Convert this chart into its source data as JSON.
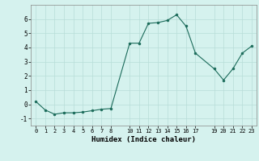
{
  "x": [
    0,
    1,
    2,
    3,
    4,
    5,
    6,
    7,
    8,
    10,
    11,
    12,
    13,
    14,
    15,
    16,
    17,
    19,
    20,
    21,
    22,
    23
  ],
  "y": [
    0.2,
    -0.4,
    -0.7,
    -0.6,
    -0.6,
    -0.55,
    -0.45,
    -0.35,
    -0.3,
    4.3,
    4.3,
    5.7,
    5.75,
    5.9,
    6.3,
    5.5,
    3.6,
    2.5,
    1.7,
    2.5,
    3.6,
    4.1
  ],
  "line_color": "#1b6b5a",
  "marker_color": "#1b6b5a",
  "bg_color": "#d5f2ee",
  "grid_color": "#b8ddd8",
  "xlabel": "Humidex (Indice chaleur)",
  "ylim": [
    -1.5,
    7.0
  ],
  "xlim": [
    -0.5,
    23.5
  ],
  "yticks": [
    -1,
    0,
    1,
    2,
    3,
    4,
    5,
    6
  ],
  "xticks": [
    0,
    1,
    2,
    3,
    4,
    5,
    6,
    7,
    8,
    10,
    11,
    12,
    13,
    14,
    15,
    16,
    17,
    19,
    20,
    21,
    22,
    23
  ],
  "xlabel_fontsize": 6.5,
  "tick_fontsize": 5.0
}
